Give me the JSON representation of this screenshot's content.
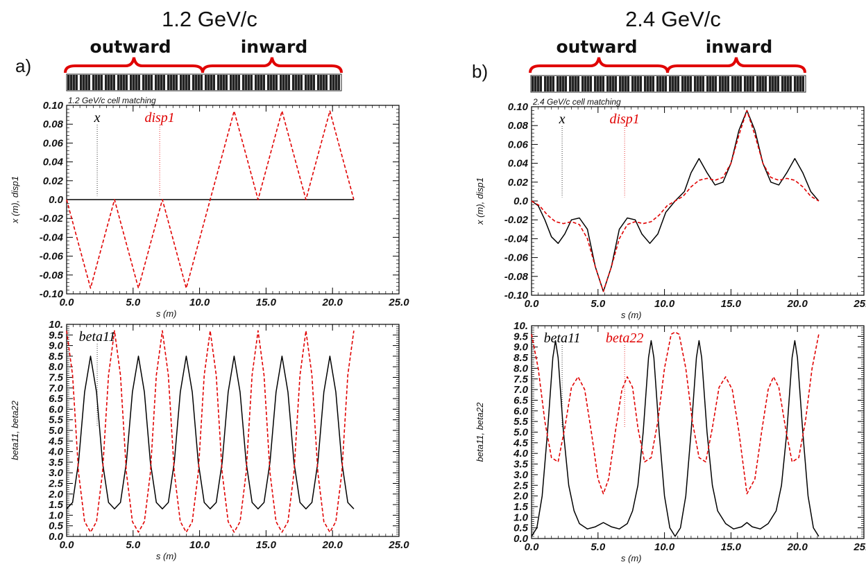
{
  "headings": {
    "left": "1.2 GeV/c",
    "right": "2.4 GeV/c"
  },
  "panel_letters": {
    "left": "a)",
    "right": "b)"
  },
  "brace_labels": {
    "outward": "outward",
    "inward": "inward"
  },
  "colors": {
    "brace": "#e00000",
    "series_x": "#000000",
    "series_disp": "#e00000",
    "magnet": "#222222"
  },
  "chart_data": [
    {
      "type": "line",
      "subtitle": "1.2 GeV/c cell matching",
      "xlabel": "s (m)",
      "ylabel": "x (m), disp1",
      "xlim": [
        0,
        25
      ],
      "ylim": [
        -0.1,
        0.1
      ],
      "xticks": [
        "0.0",
        "5.0",
        "10.0",
        "15.0",
        "20.0",
        "25.0"
      ],
      "yticks": [
        "0.10",
        "0.08",
        "0.06",
        "0.04",
        "0.02",
        "0.0",
        "-0.02",
        "-0.04",
        "-0.06",
        "-0.08",
        "-0.10"
      ],
      "legend": [
        {
          "text": "x",
          "color": "#000000",
          "at": 2.3
        },
        {
          "text": "disp1",
          "color": "#e00000",
          "at": 7.0
        }
      ],
      "series": [
        {
          "name": "x",
          "style": "solid",
          "color": "#000000",
          "x": [
            0,
            2,
            4,
            6,
            8,
            10,
            12,
            14,
            16,
            18,
            20,
            21.6
          ],
          "y": [
            0,
            0,
            0,
            0,
            0,
            0,
            0,
            0,
            0,
            0,
            0,
            0
          ]
        },
        {
          "name": "disp1",
          "style": "dashed",
          "color": "#e00000",
          "x": [
            0,
            0.9,
            1.8,
            2.7,
            3.6,
            4.5,
            5.4,
            6.3,
            7.2,
            8.1,
            9.0,
            9.9,
            10.8,
            11.7,
            12.6,
            13.5,
            14.4,
            15.3,
            16.2,
            17.1,
            18.0,
            18.9,
            19.8,
            20.7,
            21.6
          ],
          "y": [
            0,
            -0.047,
            -0.094,
            -0.047,
            0,
            -0.047,
            -0.094,
            -0.047,
            0,
            -0.047,
            -0.094,
            -0.047,
            0,
            0.047,
            0.094,
            0.047,
            0,
            0.047,
            0.094,
            0.047,
            0,
            0.047,
            0.094,
            0.047,
            0
          ]
        }
      ]
    },
    {
      "type": "line",
      "subtitle": "2.4 GeV/c cell matching",
      "xlabel": "s (m)",
      "ylabel": "x (m), disp1",
      "xlim": [
        0,
        25
      ],
      "ylim": [
        -0.1,
        0.1
      ],
      "xticks": [
        "0.0",
        "5.0",
        "10.0",
        "15.0",
        "20.0",
        "25.0"
      ],
      "yticks": [
        "0.10",
        "0.08",
        "0.06",
        "0.04",
        "0.02",
        "0.0",
        "-0.02",
        "-0.04",
        "-0.06",
        "-0.08",
        "-0.10"
      ],
      "legend": [
        {
          "text": "x",
          "color": "#000000",
          "at": 2.3
        },
        {
          "text": "disp1",
          "color": "#e00000",
          "at": 7.0
        }
      ],
      "series": [
        {
          "name": "x",
          "style": "solid",
          "color": "#000000",
          "x": [
            0,
            0.5,
            1.0,
            1.5,
            2.0,
            2.5,
            3.0,
            3.6,
            4.2,
            4.8,
            5.4,
            6.0,
            6.6,
            7.2,
            7.8,
            8.3,
            8.9,
            9.5,
            10.1,
            10.8,
            11.5,
            12.0,
            12.6,
            13.2,
            13.8,
            14.4,
            15.0,
            15.6,
            16.2,
            16.8,
            17.4,
            18.0,
            18.6,
            19.2,
            19.8,
            20.4,
            21.0,
            21.6
          ],
          "y": [
            0,
            -0.005,
            -0.02,
            -0.038,
            -0.045,
            -0.035,
            -0.02,
            -0.018,
            -0.03,
            -0.07,
            -0.096,
            -0.07,
            -0.03,
            -0.018,
            -0.02,
            -0.035,
            -0.045,
            -0.035,
            -0.012,
            0,
            0.01,
            0.03,
            0.045,
            0.03,
            0.017,
            0.02,
            0.04,
            0.075,
            0.096,
            0.075,
            0.04,
            0.02,
            0.017,
            0.03,
            0.045,
            0.03,
            0.01,
            0
          ]
        },
        {
          "name": "disp1",
          "style": "dashed",
          "color": "#e00000",
          "x": [
            0,
            0.6,
            1.2,
            1.8,
            2.4,
            3.0,
            3.6,
            4.2,
            4.8,
            5.4,
            6.0,
            6.6,
            7.2,
            7.8,
            8.4,
            9.0,
            9.6,
            10.2,
            10.8,
            11.4,
            12.0,
            12.6,
            13.2,
            13.8,
            14.4,
            15.0,
            15.6,
            16.2,
            16.8,
            17.4,
            18.0,
            18.6,
            19.2,
            19.8,
            20.4,
            21.0,
            21.6
          ],
          "y": [
            0,
            -0.005,
            -0.015,
            -0.022,
            -0.024,
            -0.022,
            -0.025,
            -0.04,
            -0.07,
            -0.096,
            -0.07,
            -0.04,
            -0.025,
            -0.022,
            -0.024,
            -0.022,
            -0.015,
            -0.005,
            0,
            0.005,
            0.015,
            0.022,
            0.024,
            0.022,
            0.025,
            0.04,
            0.07,
            0.096,
            0.07,
            0.04,
            0.025,
            0.022,
            0.024,
            0.022,
            0.015,
            0.005,
            0
          ]
        }
      ]
    },
    {
      "type": "line",
      "xlabel": "s (m)",
      "ylabel": "beta11, beta22",
      "xlim": [
        0,
        25
      ],
      "ylim": [
        0,
        10
      ],
      "xticks": [
        "0.0",
        "5.0",
        "10.0",
        "15.0",
        "20.0",
        "25.0"
      ],
      "yticks": [
        "10.",
        "9.5",
        "9.0",
        "8.5",
        "8.0",
        "7.5",
        "7.0",
        "6.5",
        "6.0",
        "5.5",
        "5.0",
        "4.5",
        "4.0",
        "3.5",
        "3.0",
        "2.5",
        "2.0",
        "1.5",
        "1.0",
        "0.5",
        "0.0"
      ],
      "legend": [
        {
          "text": "beta11",
          "color": "#000000",
          "at": 2.3
        }
      ],
      "series": [
        {
          "name": "beta11",
          "style": "solid",
          "color": "#000000",
          "x": [
            0,
            0.45,
            0.9,
            1.35,
            1.8,
            2.25,
            2.7,
            3.15,
            3.6,
            4.05,
            4.5,
            4.95,
            5.4,
            5.85,
            6.3,
            6.75,
            7.2,
            7.65,
            8.1,
            8.55,
            9.0,
            9.45,
            9.9,
            10.35,
            10.8,
            11.25,
            11.7,
            12.15,
            12.6,
            13.05,
            13.5,
            13.95,
            14.4,
            14.85,
            15.3,
            15.75,
            16.2,
            16.65,
            17.1,
            17.55,
            18.0,
            18.45,
            18.9,
            19.35,
            19.8,
            20.25,
            20.7,
            21.15,
            21.6
          ],
          "y": [
            1.3,
            1.6,
            3.5,
            6.8,
            8.5,
            6.8,
            3.5,
            1.6,
            1.3,
            1.6,
            3.5,
            6.8,
            8.5,
            6.8,
            3.5,
            1.6,
            1.3,
            1.6,
            3.5,
            6.8,
            8.5,
            6.8,
            3.5,
            1.6,
            1.3,
            1.6,
            3.5,
            6.8,
            8.5,
            6.8,
            3.5,
            1.6,
            1.3,
            1.6,
            3.5,
            6.8,
            8.5,
            6.8,
            3.5,
            1.6,
            1.3,
            1.6,
            3.5,
            6.8,
            8.5,
            6.8,
            3.5,
            1.6,
            1.3
          ]
        },
        {
          "name": "beta22",
          "style": "dashed",
          "color": "#e00000",
          "x": [
            0,
            0.45,
            0.9,
            1.35,
            1.8,
            2.25,
            2.7,
            3.15,
            3.6,
            4.05,
            4.5,
            4.95,
            5.4,
            5.85,
            6.3,
            6.75,
            7.2,
            7.65,
            8.1,
            8.55,
            9.0,
            9.45,
            9.9,
            10.35,
            10.8,
            11.25,
            11.7,
            12.15,
            12.6,
            13.05,
            13.5,
            13.95,
            14.4,
            14.85,
            15.3,
            15.75,
            16.2,
            16.65,
            17.1,
            17.55,
            18.0,
            18.45,
            18.9,
            19.35,
            19.8,
            20.25,
            20.7,
            21.15,
            21.6
          ],
          "y": [
            9.7,
            7.6,
            3.0,
            0.7,
            0.2,
            0.7,
            3.0,
            7.6,
            9.7,
            7.6,
            3.0,
            0.7,
            0.2,
            0.7,
            3.0,
            7.6,
            9.7,
            7.6,
            3.0,
            0.7,
            0.2,
            0.7,
            3.0,
            7.6,
            9.7,
            7.6,
            3.0,
            0.7,
            0.2,
            0.7,
            3.0,
            7.6,
            9.7,
            7.6,
            3.0,
            0.7,
            0.2,
            0.7,
            3.0,
            7.6,
            9.7,
            7.6,
            3.0,
            0.7,
            0.2,
            0.7,
            3.0,
            7.6,
            9.7
          ]
        }
      ]
    },
    {
      "type": "line",
      "xlabel": "s (m)",
      "ylabel": "beta11, beta22",
      "xlim": [
        0,
        25
      ],
      "ylim": [
        0,
        10
      ],
      "xticks": [
        "0.0",
        "5.0",
        "10.0",
        "15.0",
        "20.0",
        "25.0"
      ],
      "yticks": [
        "10.",
        "9.5",
        "9.0",
        "8.5",
        "8.0",
        "7.5",
        "7.0",
        "6.5",
        "6.0",
        "5.5",
        "5.0",
        "4.5",
        "4.0",
        "3.5",
        "3.0",
        "2.5",
        "2.0",
        "1.5",
        "1.0",
        "0.5",
        "0.0"
      ],
      "legend": [
        {
          "text": "beta11",
          "color": "#000000",
          "at": 2.3
        },
        {
          "text": "beta22",
          "color": "#e00000",
          "at": 7.0
        }
      ],
      "series": [
        {
          "name": "beta11",
          "style": "solid",
          "color": "#000000",
          "x": [
            0,
            0.4,
            0.8,
            1.2,
            1.6,
            1.8,
            2.0,
            2.4,
            2.8,
            3.2,
            3.6,
            4.2,
            4.8,
            5.4,
            6.0,
            6.6,
            7.2,
            7.6,
            8.0,
            8.4,
            8.8,
            9.0,
            9.2,
            9.6,
            10.0,
            10.4,
            10.8,
            11.2,
            11.6,
            12.0,
            12.4,
            12.6,
            12.8,
            13.2,
            13.6,
            14.0,
            14.6,
            15.2,
            15.8,
            16.2,
            16.6,
            17.2,
            17.8,
            18.4,
            18.8,
            19.2,
            19.6,
            19.8,
            20.0,
            20.4,
            20.8,
            21.2,
            21.6
          ],
          "y": [
            0.1,
            0.5,
            2.0,
            5.0,
            8.5,
            9.3,
            8.5,
            5.0,
            2.5,
            1.3,
            0.7,
            0.45,
            0.55,
            0.75,
            0.55,
            0.45,
            0.7,
            1.3,
            2.5,
            5.0,
            8.5,
            9.3,
            8.5,
            5.0,
            2.0,
            0.5,
            0.1,
            0.5,
            2.0,
            5.0,
            8.5,
            9.3,
            8.5,
            5.0,
            2.5,
            1.3,
            0.7,
            0.45,
            0.55,
            0.75,
            0.55,
            0.45,
            0.7,
            1.3,
            2.5,
            5.0,
            8.5,
            9.3,
            8.5,
            5.0,
            2.0,
            0.5,
            0.1
          ]
        },
        {
          "name": "beta22",
          "style": "dashed",
          "color": "#e00000",
          "x": [
            0,
            0.5,
            1.0,
            1.5,
            2.0,
            2.5,
            3.0,
            3.5,
            4.0,
            4.5,
            5.0,
            5.4,
            5.8,
            6.3,
            6.8,
            7.2,
            7.6,
            8.0,
            8.5,
            9.0,
            9.5,
            10.0,
            10.5,
            10.8,
            11.1,
            11.6,
            12.1,
            12.6,
            13.1,
            13.6,
            14.1,
            14.6,
            15.1,
            15.6,
            16.2,
            16.8,
            17.3,
            17.8,
            18.2,
            18.6,
            19.1,
            19.6,
            20.1,
            20.6,
            21.1,
            21.6
          ],
          "y": [
            9.6,
            8.0,
            5.5,
            3.8,
            3.6,
            5.2,
            7.1,
            7.6,
            7.0,
            5.0,
            2.8,
            2.1,
            2.8,
            5.0,
            7.0,
            7.6,
            7.1,
            5.2,
            3.6,
            3.8,
            5.5,
            8.0,
            9.6,
            9.7,
            9.6,
            8.0,
            5.5,
            3.8,
            3.6,
            5.2,
            7.1,
            7.6,
            7.0,
            5.0,
            2.1,
            2.8,
            5.0,
            7.0,
            7.6,
            7.1,
            5.2,
            3.6,
            3.8,
            5.5,
            8.0,
            9.6
          ]
        }
      ]
    }
  ]
}
